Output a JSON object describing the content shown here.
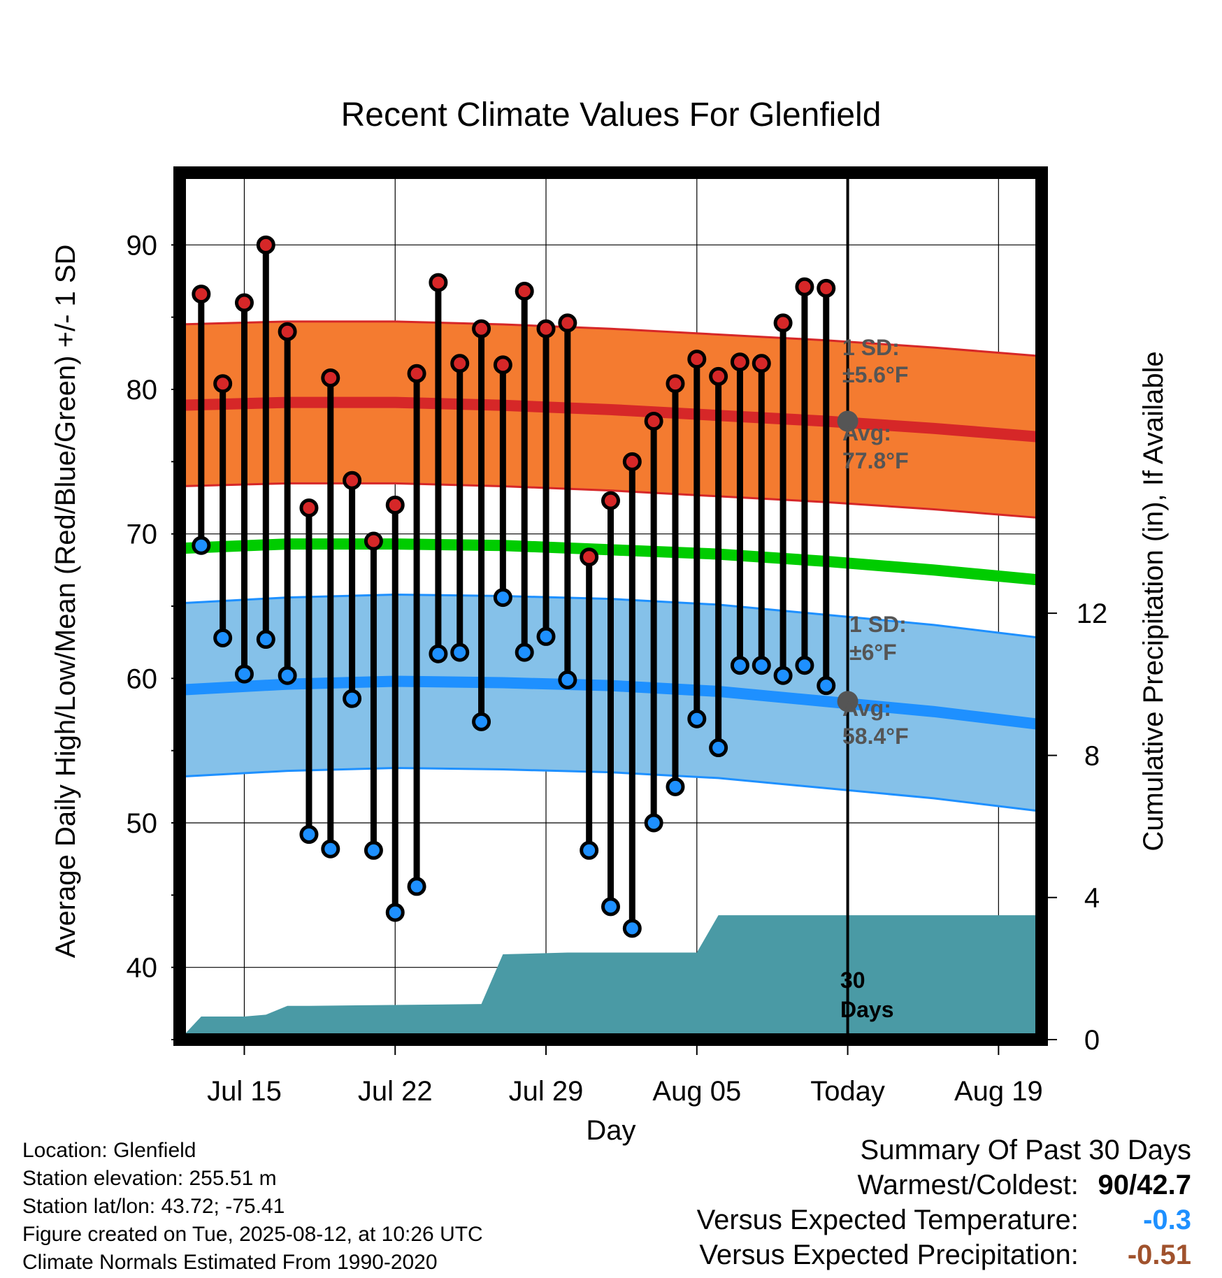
{
  "chart_data": {
    "type": "line",
    "title": "Recent Climate Values For Glenfield",
    "xlabel": "Day",
    "ylabel": "Average Daily High/Low/Mean (Red/Blue/Green) +/- 1 SD",
    "y2label": "Cumulative Precipitation (in), If Available",
    "ylim": [
      35,
      95
    ],
    "y2lim": [
      0,
      24.4
    ],
    "y_ticks": [
      40,
      50,
      60,
      70,
      80,
      90
    ],
    "y2_ticks": [
      0,
      4,
      8,
      12
    ],
    "x_tick_labels": [
      "Jul 15",
      "Jul 22",
      "Jul 29",
      "Aug 05",
      "Today",
      "Aug 19"
    ],
    "x_tick_dates": [
      "2025-07-15",
      "2025-07-22",
      "2025-07-29",
      "2025-08-05",
      "2025-08-12",
      "2025-08-19"
    ],
    "x_range": [
      "2025-07-12",
      "2025-08-21"
    ],
    "today": "2025-08-12",
    "grid": true,
    "days": [
      "2025-07-13",
      "2025-07-14",
      "2025-07-15",
      "2025-07-16",
      "2025-07-17",
      "2025-07-18",
      "2025-07-19",
      "2025-07-20",
      "2025-07-21",
      "2025-07-22",
      "2025-07-23",
      "2025-07-24",
      "2025-07-25",
      "2025-07-26",
      "2025-07-27",
      "2025-07-28",
      "2025-07-29",
      "2025-07-30",
      "2025-07-31",
      "2025-08-01",
      "2025-08-02",
      "2025-08-03",
      "2025-08-04",
      "2025-08-05",
      "2025-08-06",
      "2025-08-07",
      "2025-08-08",
      "2025-08-09",
      "2025-08-10",
      "2025-08-11"
    ],
    "series": [
      {
        "name": "High",
        "color": "#d62728",
        "values": [
          86.6,
          80.4,
          86.0,
          90.0,
          84.0,
          71.8,
          80.8,
          73.7,
          69.5,
          72.0,
          81.1,
          87.4,
          81.8,
          84.2,
          81.7,
          86.8,
          84.2,
          84.6,
          68.4,
          72.3,
          75.0,
          77.8,
          80.4,
          82.1,
          80.9,
          81.9,
          81.8,
          84.6,
          87.1,
          87.0
        ]
      },
      {
        "name": "Low",
        "color": "#1e90ff",
        "values": [
          69.2,
          62.8,
          60.3,
          62.7,
          60.2,
          49.2,
          48.2,
          58.6,
          48.1,
          43.8,
          45.6,
          61.7,
          61.8,
          57.0,
          65.6,
          61.8,
          62.9,
          59.9,
          48.1,
          44.2,
          42.7,
          50.0,
          52.5,
          57.2,
          55.2,
          60.9,
          60.9,
          60.2,
          60.9,
          59.5
        ]
      }
    ],
    "normals": {
      "dates": [
        "2025-07-12",
        "2025-07-17",
        "2025-07-22",
        "2025-07-27",
        "2025-08-01",
        "2025-08-06",
        "2025-08-11",
        "2025-08-16",
        "2025-08-21"
      ],
      "high_avg": [
        78.9,
        79.1,
        79.1,
        78.9,
        78.6,
        78.2,
        77.8,
        77.3,
        76.7
      ],
      "high_sd": 5.6,
      "low_avg": [
        59.2,
        59.6,
        59.8,
        59.7,
        59.5,
        59.1,
        58.4,
        57.7,
        56.8
      ],
      "low_sd": 6,
      "mean_avg": [
        69.0,
        69.3,
        69.3,
        69.2,
        68.9,
        68.6,
        68.1,
        67.5,
        66.8
      ]
    },
    "precip": {
      "dates": [
        "2025-07-12",
        "2025-07-13",
        "2025-07-14",
        "2025-07-15",
        "2025-07-16",
        "2025-07-17",
        "2025-07-18",
        "2025-07-26",
        "2025-07-27",
        "2025-07-30",
        "2025-08-05",
        "2025-08-06",
        "2025-08-21"
      ],
      "cumulative": [
        0.0,
        0.65,
        0.65,
        0.65,
        0.7,
        0.95,
        0.95,
        1.0,
        2.4,
        2.45,
        2.45,
        3.5,
        3.5
      ]
    }
  },
  "annotations": {
    "high_sd_line1": "1 SD:",
    "high_sd_line2": "±5.6°F",
    "high_avg_line1": "Avg:",
    "high_avg_line2": "77.8°F",
    "high_avg_value": 77.8,
    "low_sd_line1": "1 SD:",
    "low_sd_line2": "±6°F",
    "low_avg_line1": "Avg:",
    "low_avg_line2": "58.4°F",
    "low_avg_value": 58.4,
    "days_line1": "30",
    "days_line2": "Days"
  },
  "colors": {
    "high_band": "#f47b30",
    "high_edge": "#d62728",
    "high_avg": "#d62728",
    "low_band": "#85c1e9",
    "low_edge": "#1e90ff",
    "low_avg": "#1e90ff",
    "mean": "#00cc00",
    "precip": "#4a9aa5",
    "marker_avg": "#555555",
    "warm_cold": "#000000",
    "temp_departure": "#1e90ff",
    "precip_departure": "#a0522d"
  },
  "info": {
    "location": "Location: Glenfield",
    "elevation": "Station elevation: 255.51 m",
    "latlon": "Station lat/lon: 43.72; -75.41",
    "created": "Figure created on Tue, 2025-08-12, at 10:26 UTC",
    "normals": "Climate Normals Estimated From 1990-2020"
  },
  "summary": {
    "heading": "Summary Of Past 30 Days",
    "warm_cold_label": "Warmest/Coldest:",
    "warm_cold_value": "90/42.7",
    "temp_label": "Versus Expected Temperature:",
    "temp_value": "-0.3",
    "precip_label": "Versus Expected Precipitation:",
    "precip_value": "-0.51"
  }
}
